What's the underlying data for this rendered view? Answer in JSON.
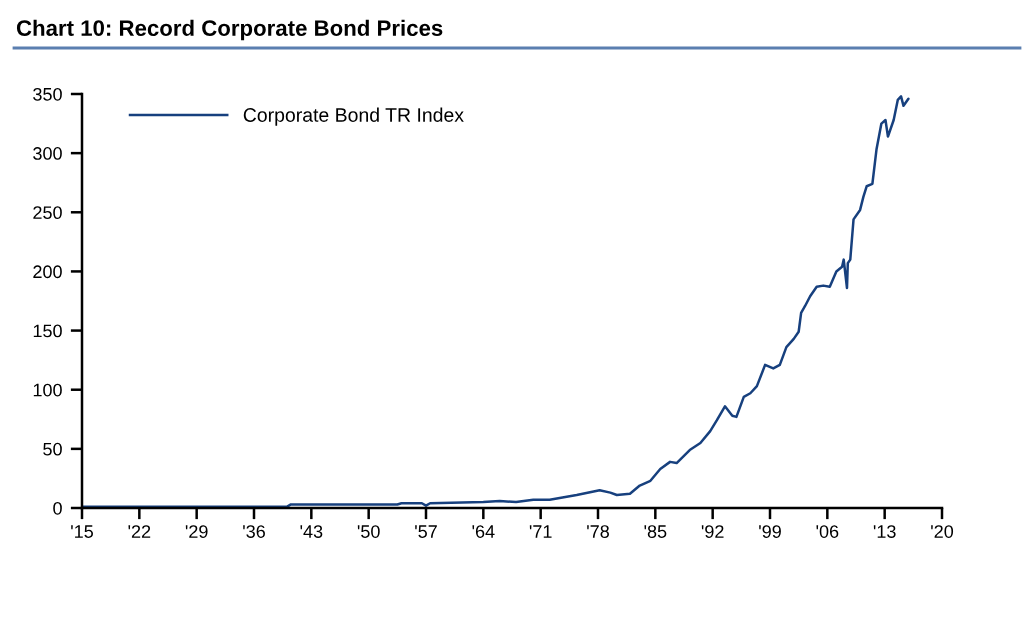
{
  "chart_data": {
    "type": "line",
    "title": "Chart 10: Record Corporate Bond Prices",
    "x": [
      1915,
      1940,
      1940.5,
      1953.5,
      1954,
      1956.5,
      1957,
      1957.5,
      1964,
      1966,
      1968,
      1970.1,
      1972.1,
      1975.4,
      1978.2,
      1979.5,
      1980.3,
      1981.9,
      1983.1,
      1984.4,
      1985.6,
      1986.8,
      1987.6,
      1989.2,
      1990.5,
      1991.7,
      1992.5,
      1993.5,
      1994.4,
      1994.9,
      1995.8,
      1996.6,
      1997.4,
      1998.4,
      1999.4,
      2000.2,
      2001.0,
      2001.9,
      2002.5,
      2002.8,
      2003.3,
      2003.9,
      2004.7,
      2005.5,
      2006.3,
      2007.1,
      2007.8,
      2008.0,
      2008.4,
      2008.5,
      2008.8,
      2009.2,
      2010.0,
      2010.4,
      2010.8,
      2011.5,
      2012.0,
      2012.6,
      2013.1,
      2013.4,
      2014.1,
      2014.6,
      2015.0,
      2015.3,
      2015.9
    ],
    "series": [
      {
        "name": "Corporate Bond TR Index",
        "color": "#17407e",
        "values": [
          1,
          1,
          3,
          3,
          4,
          4,
          2,
          4,
          5,
          6,
          5,
          7,
          7,
          11,
          15,
          13,
          11,
          12,
          19,
          23,
          33,
          39,
          38,
          49,
          55,
          65,
          74,
          86,
          78,
          77,
          94,
          97,
          103,
          121,
          118,
          121,
          136,
          143,
          149,
          165,
          171,
          179,
          187,
          188,
          187,
          200,
          204,
          210,
          186,
          207,
          210,
          244,
          252,
          263,
          272,
          274,
          303,
          325,
          328,
          314,
          328,
          345,
          348,
          340,
          346
        ]
      }
    ],
    "xlim": [
      1915,
      2020
    ],
    "xticks": [
      {
        "value": 1915,
        "label": "'15"
      },
      {
        "value": 1922,
        "label": "'22"
      },
      {
        "value": 1929,
        "label": "'29"
      },
      {
        "value": 1936,
        "label": "'36"
      },
      {
        "value": 1943,
        "label": "'43"
      },
      {
        "value": 1950,
        "label": "'50"
      },
      {
        "value": 1957,
        "label": "'57"
      },
      {
        "value": 1964,
        "label": "'64"
      },
      {
        "value": 1971,
        "label": "'71"
      },
      {
        "value": 1978,
        "label": "'78"
      },
      {
        "value": 1985,
        "label": "'85"
      },
      {
        "value": 1992,
        "label": "'92"
      },
      {
        "value": 1999,
        "label": "'99"
      },
      {
        "value": 2006,
        "label": "'06"
      },
      {
        "value": 2013,
        "label": "'13"
      },
      {
        "value": 2020,
        "label": "'20"
      }
    ],
    "ylim": [
      0,
      350
    ],
    "yticks": [
      0,
      50,
      100,
      150,
      200,
      250,
      300,
      350
    ],
    "legend": "top left",
    "line_style": "solid",
    "grid": false
  }
}
